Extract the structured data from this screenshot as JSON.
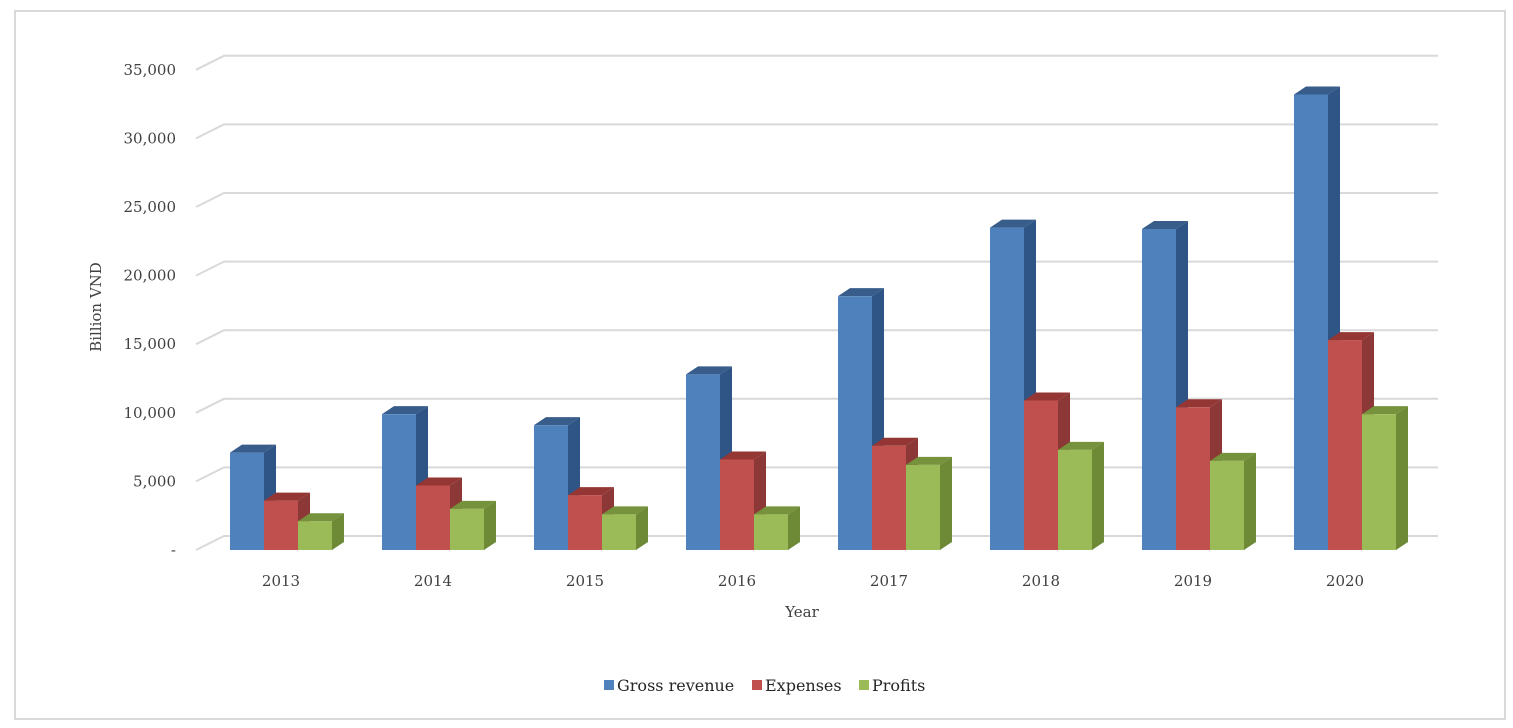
{
  "chart_data": {
    "type": "bar",
    "title": "",
    "xlabel": "Year",
    "ylabel": "Billion VND",
    "ylim": [
      0,
      35000
    ],
    "yticks": [
      0,
      5000,
      10000,
      15000,
      20000,
      25000,
      30000,
      35000
    ],
    "ytick_labels": [
      "-",
      "5,000",
      "10,000",
      "15,000",
      "20,000",
      "25,000",
      "30,000",
      "35,000"
    ],
    "grid": true,
    "three_d": true,
    "legend_position": "bottom",
    "categories": [
      "2013",
      "2014",
      "2015",
      "2016",
      "2017",
      "2018",
      "2019",
      "2020"
    ],
    "series": [
      {
        "name": "Gross revenue",
        "color": "#4f81bd",
        "top_color": "#385d8a",
        "side_color": "#2f5486",
        "values": [
          7100,
          9900,
          9100,
          12800,
          18500,
          23500,
          23400,
          33200
        ]
      },
      {
        "name": "Expenses",
        "color": "#c0504d",
        "top_color": "#943634",
        "side_color": "#8c3836",
        "values": [
          3600,
          4700,
          4000,
          6600,
          7600,
          10900,
          10400,
          15300
        ]
      },
      {
        "name": "Profits",
        "color": "#9bbb59",
        "top_color": "#76923c",
        "side_color": "#6f8a37",
        "values": [
          2100,
          3000,
          2600,
          2600,
          6200,
          7300,
          6500,
          9900
        ]
      }
    ]
  }
}
